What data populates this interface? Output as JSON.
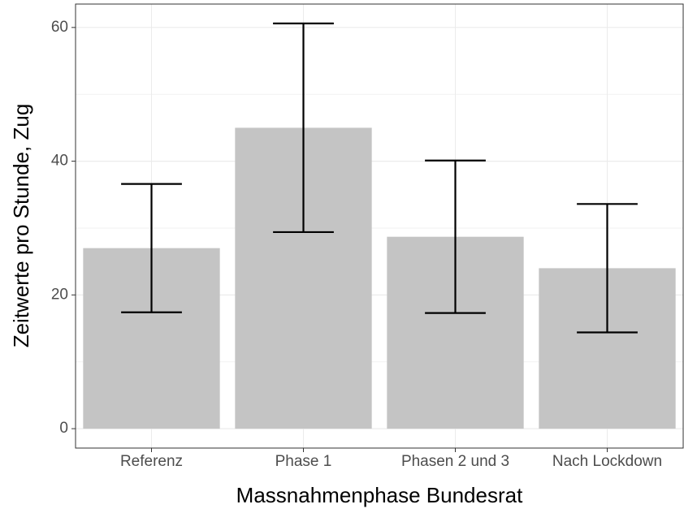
{
  "chart_data": {
    "type": "bar",
    "categories": [
      "Referenz",
      "Phase 1",
      "Phasen 2 und 3",
      "Nach Lockdown"
    ],
    "values": [
      27,
      45,
      28.7,
      24
    ],
    "errors": [
      9.6,
      15.6,
      11.4,
      9.6
    ],
    "color": "#c4c4c4",
    "error_color": "#000000",
    "x_label": "Massnahmenphase Bundesrat",
    "y_label": "Zeitwerte pro Stunde, Zug",
    "ylim": [
      -2.9,
      63.5
    ],
    "yticks": [
      0,
      20,
      40,
      60
    ],
    "y_minor_ticks": [
      10,
      30,
      50
    ],
    "grid": true
  }
}
